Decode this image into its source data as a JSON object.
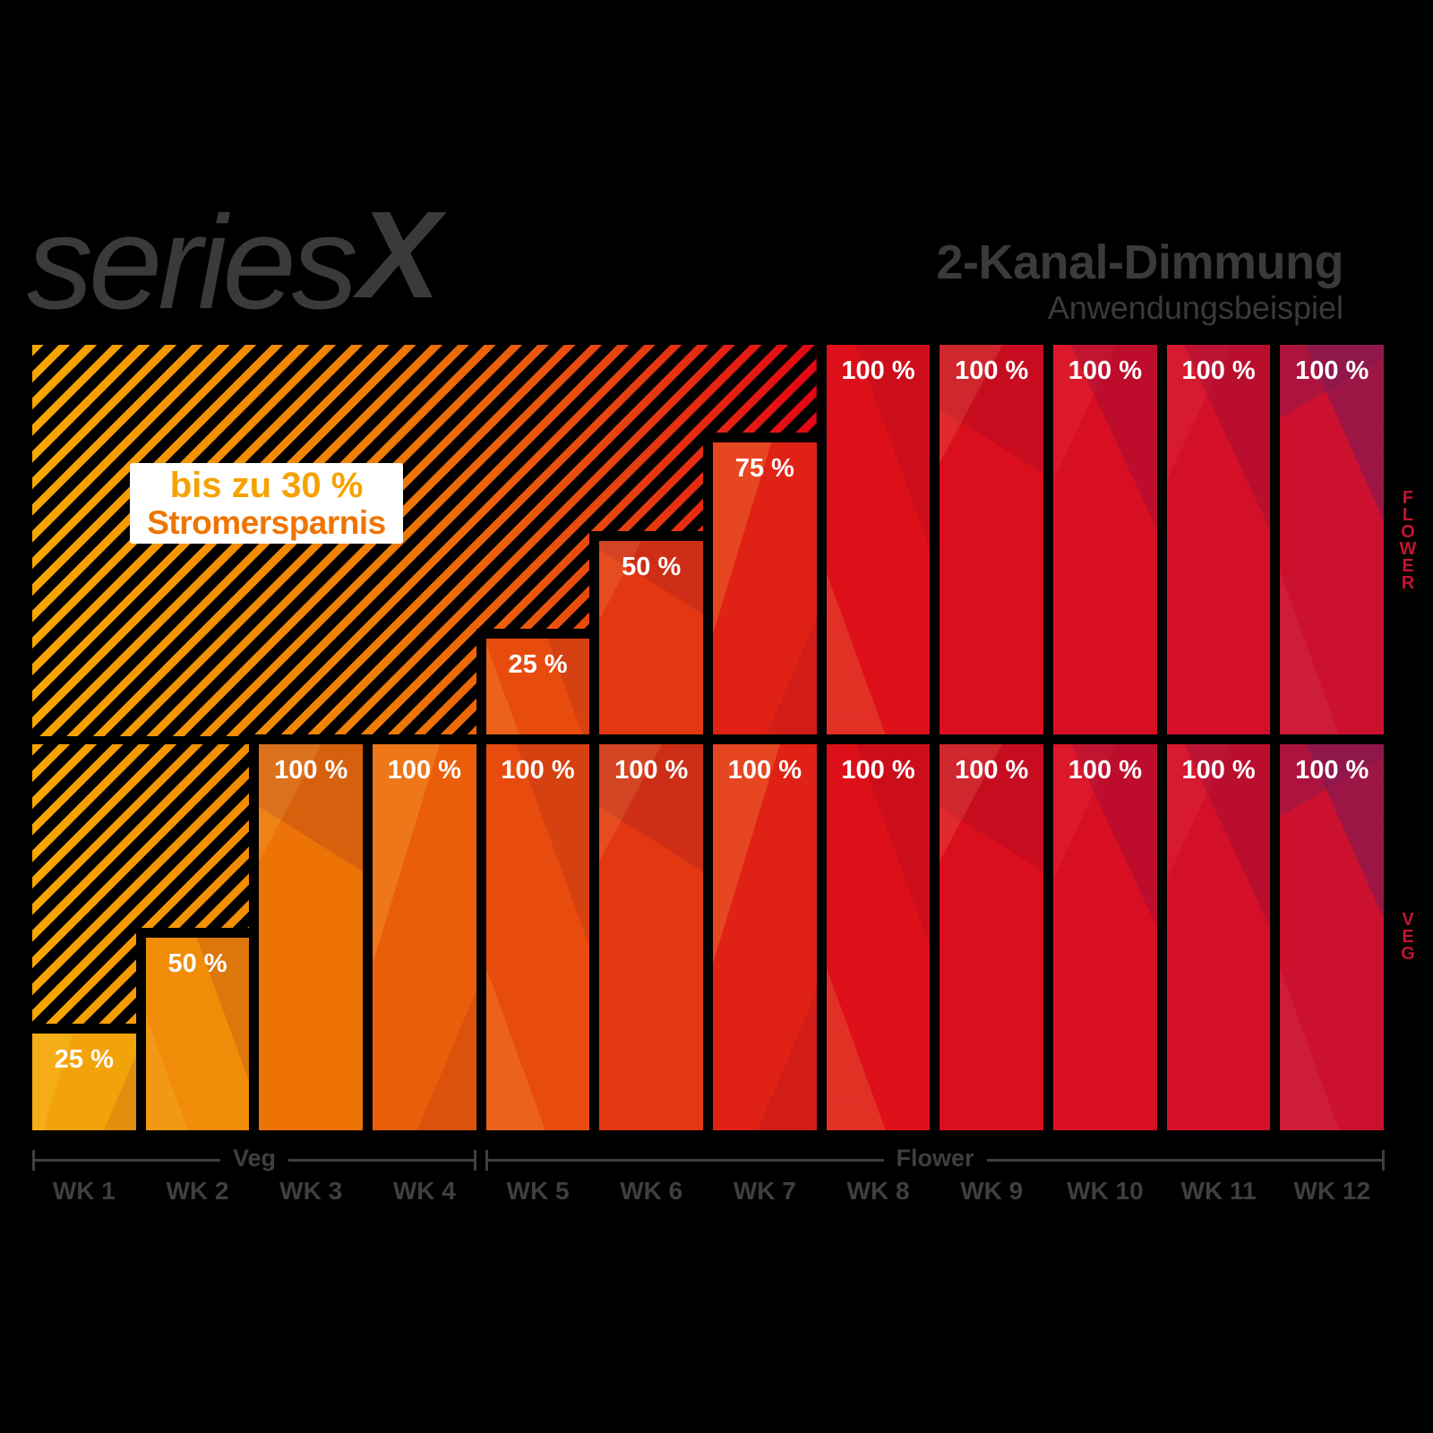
{
  "colors": {
    "background": "#000000",
    "text_dark": "#3a3a38",
    "axis_gray": "#3f3f3d",
    "bar_label_white": "#ffffff",
    "channel_label_red": "#c31430",
    "badge_background": "#ffffff",
    "badge_text_top": "#f6a200",
    "badge_text_bottom": "#ee7502",
    "hatch_gradient": [
      "#f7a600",
      "#ef7c04",
      "#e30613"
    ],
    "bar_colors": [
      "#f3a30a",
      "#f08c07",
      "#ed7306",
      "#ea5e0b",
      "#e74c0e",
      "#e33711",
      "#e02115",
      "#dd1019",
      "#db0e1e",
      "#d80f23",
      "#d31028",
      "#cc112e"
    ]
  },
  "logo": {
    "series": "series",
    "x": "X"
  },
  "header": {
    "title": "2-Kanal-Dimmung",
    "subtitle": "Anwendungsbeispiel"
  },
  "badge": {
    "line1": "bis zu 30 %",
    "line2": "Stromersparnis"
  },
  "channels": {
    "top": "FLOWER",
    "bottom": "VEG"
  },
  "axis": {
    "veg_label": "Veg",
    "flower_label": "Flower"
  },
  "chart_data": {
    "type": "bar",
    "unit": "%",
    "ylim": [
      0,
      100
    ],
    "categories": [
      "WK 1",
      "WK 2",
      "WK 3",
      "WK 4",
      "WK 5",
      "WK 6",
      "WK 7",
      "WK 8",
      "WK 9",
      "WK 10",
      "WK 11",
      "WK 12"
    ],
    "series": [
      {
        "name": "Flower",
        "channel": "top",
        "values": [
          0,
          0,
          0,
          0,
          25,
          50,
          75,
          100,
          100,
          100,
          100,
          100
        ],
        "labels": [
          "",
          "",
          "",
          "",
          "25 %",
          "50 %",
          "75 %",
          "100 %",
          "100 %",
          "100 %",
          "100 %",
          "100 %"
        ]
      },
      {
        "name": "Veg",
        "channel": "bottom",
        "values": [
          25,
          50,
          100,
          100,
          100,
          100,
          100,
          100,
          100,
          100,
          100,
          100
        ],
        "labels": [
          "25 %",
          "50 %",
          "100 %",
          "100 %",
          "100 %",
          "100 %",
          "100 %",
          "100 %",
          "100 %",
          "100 %",
          "100 %",
          "100 %"
        ]
      }
    ],
    "phases": [
      {
        "label": "Veg",
        "from": "WK 1",
        "to": "WK 4"
      },
      {
        "label": "Flower",
        "from": "WK 5",
        "to": "WK 12"
      }
    ],
    "annotation": "bis zu 30 % Stromersparnis",
    "legend_position": "right",
    "grid": false
  }
}
